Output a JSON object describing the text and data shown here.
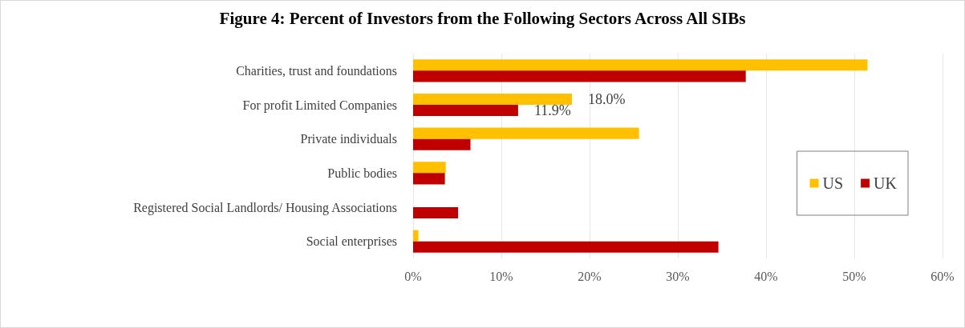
{
  "chart_data": {
    "type": "bar",
    "orientation": "horizontal",
    "title": "Figure 4: Percent of Investors from the Following Sectors Across All SIBs",
    "categories": [
      "Charities, trust and foundations",
      "For profit Limited Companies",
      "Private individuals",
      "Public bodies",
      "Registered Social Landlords/ Housing Associations",
      "Social enterprises"
    ],
    "series": [
      {
        "name": "US",
        "color": "#ffc000",
        "values": [
          51.5,
          18.0,
          25.6,
          3.7,
          0,
          0.6
        ],
        "value_labels": [
          null,
          "18.0%",
          null,
          null,
          null,
          null
        ]
      },
      {
        "name": "UK",
        "color": "#c00000",
        "values": [
          37.7,
          11.9,
          6.5,
          3.6,
          5.1,
          34.6
        ],
        "value_labels": [
          null,
          "11.9%",
          null,
          null,
          null,
          null
        ]
      }
    ],
    "xlim": [
      0,
      60
    ],
    "xticks": [
      {
        "value": 0,
        "label": "0%"
      },
      {
        "value": 10,
        "label": "10%"
      },
      {
        "value": 20,
        "label": "20%"
      },
      {
        "value": 30,
        "label": "30%"
      },
      {
        "value": 40,
        "label": "40%"
      },
      {
        "value": 50,
        "label": "50%"
      },
      {
        "value": 60,
        "label": "60%"
      }
    ],
    "grid": "x",
    "legend": "right"
  }
}
